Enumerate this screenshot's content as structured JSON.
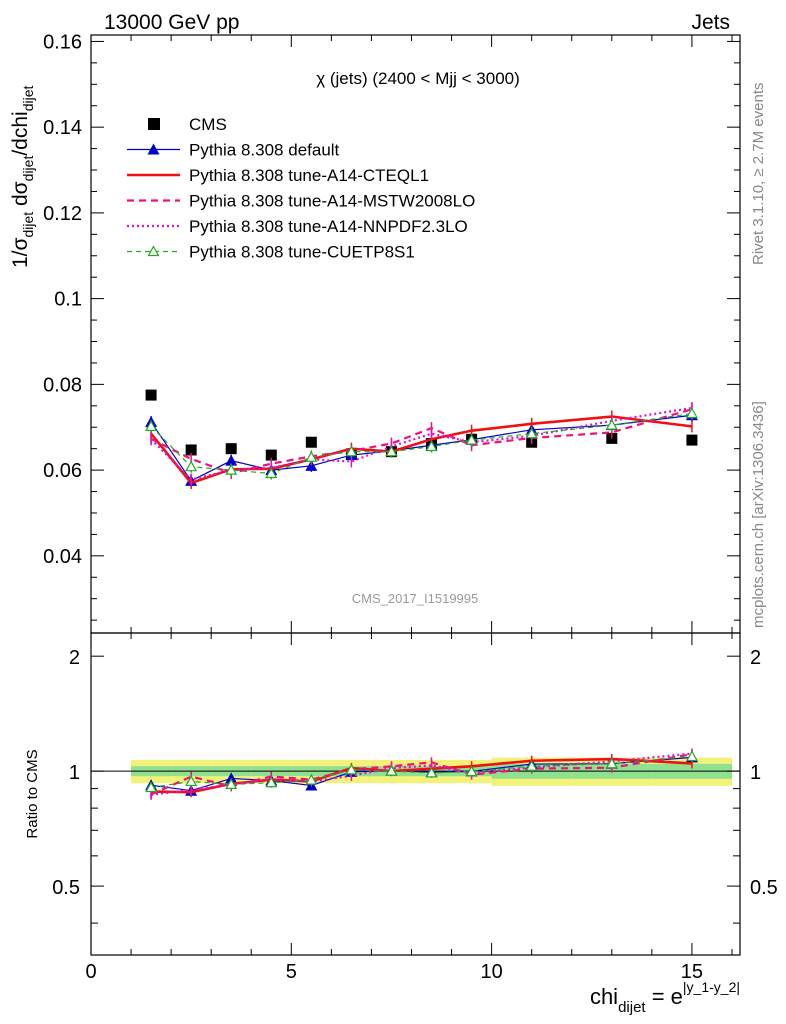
{
  "header": {
    "left": "13000 GeV pp",
    "right": "Jets"
  },
  "side": {
    "rivet": "Rivet 3.1.10, ≥ 2.7M events",
    "mcplots": "mcplots.cern.ch [arXiv:1306.3436]"
  },
  "chart_data": {
    "type": "line",
    "title": "χ (jets) (2400 < Mjj < 3000)",
    "watermark": "CMS_2017_I1519995",
    "ylabel": {
      "prefix": "1/σ",
      "sub1": "dijet",
      "mid": " dσ",
      "sub2": "dijet",
      "suffix": "/dchi",
      "sub3": "dijet"
    },
    "xlabel": {
      "base": "chi",
      "sub": "dijet",
      "eq": " = e",
      "sup": "|y_1-y_2|"
    },
    "ratio_ylabel": "Ratio to CMS",
    "xlim": [
      0,
      16.2
    ],
    "ylim": [
      0.022,
      0.1615
    ],
    "ratio_ylim": [
      0.33,
      2.3
    ],
    "x_ticks": [
      "0",
      "5",
      "10",
      "15"
    ],
    "y_ticks": [
      "0.04",
      "0.06",
      "0.08",
      "0.1",
      "0.12",
      "0.14",
      "0.16"
    ],
    "ratio_ticks": [
      "0.5",
      "1",
      "2"
    ],
    "x": [
      1.5,
      2.5,
      3.5,
      4.5,
      5.5,
      6.5,
      7.5,
      8.5,
      9.5,
      11,
      13,
      15
    ],
    "bin_edges": [
      1,
      2,
      3,
      4,
      5,
      6,
      7,
      8,
      9,
      10,
      12,
      14,
      16
    ],
    "series": [
      {
        "name": "CMS",
        "color": "#000000",
        "style": "data",
        "values": [
          0.0775,
          0.0647,
          0.065,
          0.0635,
          0.0665,
          0.0638,
          0.0643,
          0.0662,
          0.0672,
          0.0665,
          0.0674,
          0.067
        ]
      },
      {
        "name": "Pythia 8.308 default",
        "color": "#0000cc",
        "style": "solid-thin",
        "marker": "triangle-filled",
        "values": [
          0.0712,
          0.0575,
          0.0622,
          0.06,
          0.061,
          0.0635,
          0.0645,
          0.0658,
          0.0671,
          0.0694,
          0.0705,
          0.0728
        ]
      },
      {
        "name": "Pythia 8.308 tune-A14-CTEQL1",
        "color": "#ee1111",
        "style": "solid-thick",
        "marker": "none",
        "values": [
          0.0685,
          0.057,
          0.0602,
          0.0603,
          0.0625,
          0.065,
          0.0643,
          0.0672,
          0.0692,
          0.0708,
          0.0725,
          0.0702
        ]
      },
      {
        "name": "Pythia 8.308 tune-A14-MSTW2008LO",
        "color": "#ee1177",
        "style": "dashed",
        "marker": "none",
        "values": [
          0.0673,
          0.0626,
          0.0593,
          0.0615,
          0.0632,
          0.0645,
          0.0662,
          0.0698,
          0.0658,
          0.0675,
          0.0688,
          0.0742
        ]
      },
      {
        "name": "Pythia 8.308 tune-A14-NNPDF2.3LO",
        "color": "#dd11cc",
        "style": "dotted",
        "marker": "none",
        "values": [
          0.0672,
          0.0578,
          0.06,
          0.0605,
          0.0625,
          0.062,
          0.0655,
          0.0685,
          0.0665,
          0.068,
          0.0715,
          0.0745
        ]
      },
      {
        "name": "Pythia 8.308 tune-CUETP8S1",
        "color": "#22aa22",
        "style": "dashed-thin",
        "marker": "triangle-open",
        "values": [
          0.0702,
          0.0608,
          0.06,
          0.0592,
          0.063,
          0.0643,
          0.0643,
          0.0655,
          0.067,
          0.0685,
          0.0705,
          0.0732
        ]
      }
    ]
  }
}
